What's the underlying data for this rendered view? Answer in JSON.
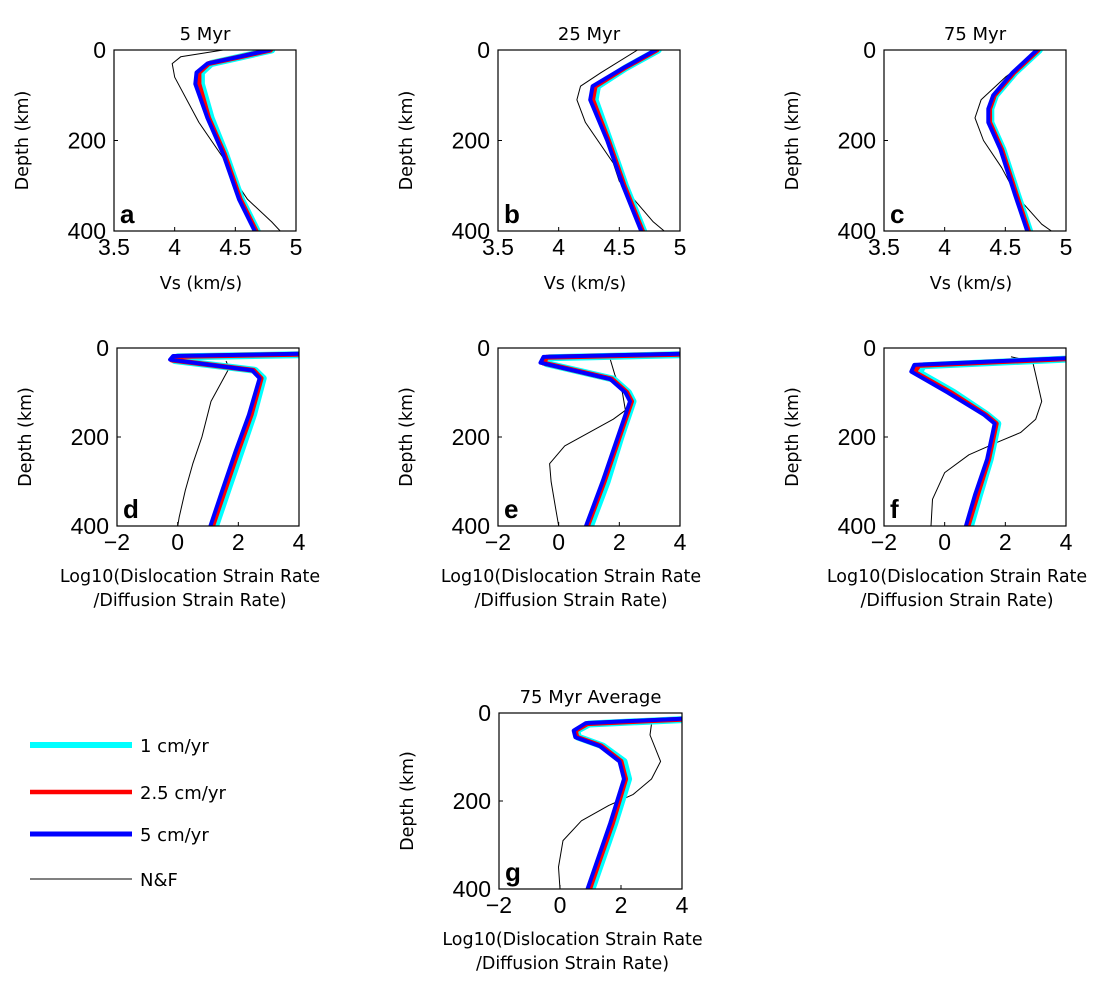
{
  "figure": {
    "legend": [
      {
        "label": "1 cm/yr",
        "color": "#00ffff",
        "width": 6
      },
      {
        "label": "2.5 cm/yr",
        "color": "#ff0000",
        "width": 4.5
      },
      {
        "label": "5 cm/yr",
        "color": "#0000ff",
        "width": 5
      },
      {
        "label": "N&F",
        "color": "#000000",
        "width": 1
      }
    ]
  },
  "chart_data": [
    {
      "type": "line",
      "id": "a",
      "panel_letter": "a",
      "title": "5 Myr",
      "xlabel": [
        "Vs (km/s)"
      ],
      "ylabel": "Depth (km)",
      "xlim": [
        3.5,
        5
      ],
      "ylim": [
        0,
        400
      ],
      "y_reversed": true,
      "xticks": [
        "3.5",
        "4",
        "4.5",
        "5"
      ],
      "yticks": [
        "0",
        "200",
        "400"
      ],
      "series": [
        {
          "name": "N&F",
          "x": [
            4.4,
            4.05,
            3.98,
            4.0,
            4.2,
            4.43,
            4.5,
            4.6,
            4.8,
            4.87
          ],
          "y": [
            0,
            15,
            30,
            60,
            160,
            250,
            290,
            330,
            380,
            400
          ]
        },
        {
          "name": "1 cm/yr",
          "x": [
            4.8,
            4.55,
            4.3,
            4.22,
            4.22,
            4.3,
            4.42,
            4.55,
            4.68
          ],
          "y": [
            0,
            15,
            30,
            50,
            75,
            150,
            230,
            330,
            400
          ]
        },
        {
          "name": "2.5 cm/yr",
          "x": [
            4.79,
            4.54,
            4.28,
            4.2,
            4.2,
            4.28,
            4.41,
            4.54,
            4.67
          ],
          "y": [
            0,
            15,
            30,
            50,
            75,
            150,
            230,
            330,
            400
          ]
        },
        {
          "name": "5 cm/yr",
          "x": [
            4.78,
            4.53,
            4.27,
            4.18,
            4.17,
            4.27,
            4.4,
            4.53,
            4.66
          ],
          "y": [
            0,
            15,
            30,
            50,
            75,
            150,
            230,
            330,
            400
          ]
        }
      ]
    },
    {
      "type": "line",
      "id": "b",
      "panel_letter": "b",
      "title": "25 Myr",
      "xlabel": [
        "Vs (km/s)"
      ],
      "ylabel": "Depth (km)",
      "xlim": [
        3.5,
        5
      ],
      "ylim": [
        0,
        400
      ],
      "y_reversed": true,
      "xticks": [
        "3.5",
        "4",
        "4.5",
        "5"
      ],
      "yticks": [
        "0",
        "200",
        "400"
      ],
      "series": [
        {
          "name": "N&F",
          "x": [
            4.65,
            4.35,
            4.18,
            4.15,
            4.22,
            4.45,
            4.5,
            4.62,
            4.78,
            4.87
          ],
          "y": [
            0,
            50,
            80,
            110,
            160,
            250,
            290,
            330,
            380,
            400
          ]
        },
        {
          "name": "1 cm/yr",
          "x": [
            4.82,
            4.55,
            4.32,
            4.3,
            4.42,
            4.55,
            4.7
          ],
          "y": [
            0,
            40,
            80,
            110,
            200,
            300,
            400
          ]
        },
        {
          "name": "2.5 cm/yr",
          "x": [
            4.81,
            4.54,
            4.3,
            4.28,
            4.41,
            4.54,
            4.69
          ],
          "y": [
            0,
            40,
            80,
            110,
            200,
            300,
            400
          ]
        },
        {
          "name": "5 cm/yr",
          "x": [
            4.8,
            4.53,
            4.28,
            4.26,
            4.4,
            4.53,
            4.68
          ],
          "y": [
            0,
            40,
            80,
            110,
            200,
            300,
            400
          ]
        }
      ]
    },
    {
      "type": "line",
      "id": "c",
      "panel_letter": "c",
      "title": "75 Myr",
      "xlabel": [
        "Vs (km/s)"
      ],
      "ylabel": "Depth (km)",
      "xlim": [
        3.5,
        5
      ],
      "ylim": [
        0,
        400
      ],
      "y_reversed": true,
      "xticks": [
        "3.5",
        "4",
        "4.5",
        "5"
      ],
      "yticks": [
        "0",
        "200",
        "400"
      ],
      "series": [
        {
          "name": "N&F",
          "x": [
            4.8,
            4.5,
            4.3,
            4.25,
            4.32,
            4.47,
            4.55,
            4.65,
            4.8,
            4.88
          ],
          "y": [
            0,
            60,
            110,
            150,
            200,
            260,
            300,
            340,
            385,
            400
          ]
        },
        {
          "name": "1 cm/yr",
          "x": [
            4.78,
            4.58,
            4.42,
            4.38,
            4.38,
            4.48,
            4.6,
            4.7
          ],
          "y": [
            0,
            50,
            100,
            130,
            160,
            220,
            320,
            400
          ]
        },
        {
          "name": "2.5 cm/yr",
          "x": [
            4.77,
            4.57,
            4.41,
            4.37,
            4.37,
            4.47,
            4.59,
            4.69
          ],
          "y": [
            0,
            50,
            100,
            130,
            160,
            220,
            320,
            400
          ]
        },
        {
          "name": "5 cm/yr",
          "x": [
            4.76,
            4.56,
            4.4,
            4.36,
            4.36,
            4.46,
            4.58,
            4.68
          ],
          "y": [
            0,
            50,
            100,
            130,
            160,
            220,
            320,
            400
          ]
        }
      ]
    },
    {
      "type": "line",
      "id": "d",
      "panel_letter": "d",
      "title": "",
      "xlabel": [
        "Log10(Dislocation Strain Rate",
        "/Diffusion Strain Rate)"
      ],
      "ylabel": "Depth (km)",
      "xlim": [
        -2,
        4
      ],
      "ylim": [
        0,
        400
      ],
      "y_reversed": true,
      "xticks": [
        "−2",
        "0",
        "2",
        "4"
      ],
      "yticks": [
        "0",
        "200",
        "400"
      ],
      "series": [
        {
          "name": "N&F",
          "x": [
            1.6,
            1.7,
            1.1,
            0.8,
            0.5,
            0.25,
            0.05,
            0.0
          ],
          "y": [
            30,
            45,
            120,
            200,
            260,
            320,
            380,
            400
          ]
        },
        {
          "name": "1 cm/yr",
          "x": [
            4.0,
            0.0,
            -0.1,
            2.55,
            2.82,
            2.5,
            2.1,
            1.65,
            1.25
          ],
          "y": [
            15,
            20,
            28,
            50,
            68,
            150,
            230,
            320,
            400
          ]
        },
        {
          "name": "2.5 cm/yr",
          "x": [
            4.0,
            -0.1,
            -0.2,
            2.5,
            2.75,
            2.42,
            2.0,
            1.55,
            1.15
          ],
          "y": [
            14,
            19,
            27,
            50,
            68,
            150,
            230,
            320,
            400
          ]
        },
        {
          "name": "5 cm/yr",
          "x": [
            4.0,
            -0.15,
            -0.25,
            2.45,
            2.7,
            2.35,
            1.92,
            1.47,
            1.08
          ],
          "y": [
            13,
            18,
            26,
            50,
            68,
            150,
            230,
            320,
            400
          ]
        }
      ]
    },
    {
      "type": "line",
      "id": "e",
      "panel_letter": "e",
      "title": "",
      "xlabel": [
        "Log10(Dislocation Strain Rate",
        "/Diffusion Strain Rate)"
      ],
      "ylabel": "Depth (km)",
      "xlim": [
        -2,
        4
      ],
      "ylim": [
        0,
        400
      ],
      "y_reversed": true,
      "xticks": [
        "−2",
        "0",
        "2",
        "4"
      ],
      "yticks": [
        "0",
        "200",
        "400"
      ],
      "series": [
        {
          "name": "N&F",
          "x": [
            1.7,
            1.85,
            2.1,
            2.2,
            1.8,
            1.0,
            0.2,
            -0.3,
            -0.25,
            -0.1,
            0.0
          ],
          "y": [
            25,
            60,
            100,
            140,
            160,
            190,
            220,
            260,
            300,
            360,
            400
          ]
        },
        {
          "name": "1 cm/yr",
          "x": [
            4.0,
            -0.3,
            -0.4,
            1.8,
            2.3,
            2.45,
            2.05,
            1.6,
            1.05
          ],
          "y": [
            15,
            22,
            35,
            70,
            100,
            120,
            200,
            300,
            400
          ]
        },
        {
          "name": "2.5 cm/yr",
          "x": [
            4.0,
            -0.4,
            -0.5,
            1.75,
            2.25,
            2.4,
            2.0,
            1.5,
            0.95
          ],
          "y": [
            14,
            21,
            34,
            70,
            100,
            120,
            200,
            300,
            400
          ]
        },
        {
          "name": "5 cm/yr",
          "x": [
            4.0,
            -0.5,
            -0.6,
            1.7,
            2.2,
            2.35,
            1.95,
            1.45,
            0.9
          ],
          "y": [
            13,
            20,
            33,
            70,
            100,
            120,
            200,
            300,
            400
          ]
        }
      ]
    },
    {
      "type": "line",
      "id": "f",
      "panel_letter": "f",
      "title": "",
      "xlabel": [
        "Log10(Dislocation Strain Rate",
        "/Diffusion Strain Rate)"
      ],
      "ylabel": "Depth (km)",
      "xlim": [
        -2,
        4
      ],
      "ylim": [
        0,
        400
      ],
      "y_reversed": true,
      "xticks": [
        "−2",
        "0",
        "2",
        "4"
      ],
      "yticks": [
        "0",
        "200",
        "400"
      ],
      "series": [
        {
          "name": "N&F",
          "x": [
            2.2,
            2.9,
            3.0,
            3.2,
            3.0,
            2.5,
            1.8,
            0.8,
            0.0,
            -0.4,
            -0.45
          ],
          "y": [
            20,
            30,
            60,
            120,
            160,
            190,
            210,
            240,
            280,
            340,
            400
          ]
        },
        {
          "name": "1 cm/yr",
          "x": [
            4.0,
            -0.7,
            -0.85,
            0.3,
            1.4,
            1.75,
            1.5,
            1.15,
            0.85
          ],
          "y": [
            25,
            40,
            55,
            100,
            150,
            170,
            250,
            330,
            400
          ]
        },
        {
          "name": "2.5 cm/yr",
          "x": [
            4.0,
            -0.85,
            -1.0,
            0.2,
            1.35,
            1.7,
            1.45,
            1.08,
            0.77
          ],
          "y": [
            24,
            39,
            54,
            100,
            150,
            170,
            250,
            330,
            400
          ]
        },
        {
          "name": "5 cm/yr",
          "x": [
            4.0,
            -1.0,
            -1.1,
            0.1,
            1.3,
            1.65,
            1.4,
            1.0,
            0.7
          ],
          "y": [
            23,
            38,
            53,
            100,
            150,
            170,
            250,
            330,
            400
          ]
        }
      ]
    },
    {
      "type": "line",
      "id": "g",
      "panel_letter": "g",
      "title": "75 Myr Average",
      "xlabel": [
        "Log10(Dislocation Strain Rate",
        "/Diffusion Strain Rate)"
      ],
      "ylabel": "Depth (km)",
      "xlim": [
        -2,
        4
      ],
      "ylim": [
        0,
        400
      ],
      "y_reversed": true,
      "xticks": [
        "−2",
        "0",
        "2",
        "4"
      ],
      "yticks": [
        "0",
        "200",
        "400"
      ],
      "series": [
        {
          "name": "N&F",
          "x": [
            2.3,
            3.0,
            2.95,
            3.3,
            3.0,
            2.4,
            1.6,
            0.7,
            0.1,
            -0.05,
            0.0
          ],
          "y": [
            15,
            25,
            50,
            110,
            150,
            185,
            210,
            245,
            290,
            350,
            400
          ]
        },
        {
          "name": "1 cm/yr",
          "x": [
            4.0,
            0.95,
            0.55,
            0.6,
            1.4,
            2.1,
            2.25,
            1.8,
            1.35,
            1.05
          ],
          "y": [
            15,
            25,
            40,
            55,
            75,
            110,
            150,
            250,
            340,
            400
          ]
        },
        {
          "name": "2.5 cm/yr",
          "x": [
            4.0,
            0.9,
            0.5,
            0.55,
            1.35,
            2.0,
            2.15,
            1.72,
            1.27,
            0.97
          ],
          "y": [
            14,
            24,
            40,
            55,
            75,
            110,
            150,
            250,
            340,
            400
          ]
        },
        {
          "name": "5 cm/yr",
          "x": [
            4.0,
            0.85,
            0.45,
            0.5,
            1.3,
            1.95,
            2.1,
            1.65,
            1.2,
            0.9
          ],
          "y": [
            13,
            23,
            40,
            55,
            75,
            110,
            150,
            250,
            340,
            400
          ]
        }
      ]
    }
  ]
}
